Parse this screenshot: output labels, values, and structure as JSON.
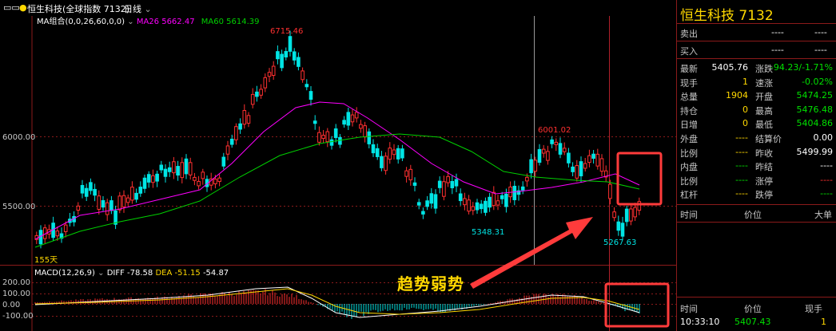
{
  "topbar": {
    "nav_glyph": "▭▭",
    "title": "恒生科技(全球指数 7132)",
    "period": "日线",
    "ma_label": "MA组合(0,0,26,60,0,0)",
    "ma26": "MA26 5662.47",
    "ma60": "MA60 5614.39"
  },
  "price_axis": [
    "6000.00",
    "5500.00"
  ],
  "macd": {
    "label": "MACD(12,26,9)",
    "diff": "DIFF -78.58",
    "dea": "DEA -51.15",
    "macd_val": "-54.87",
    "axis": [
      "200.00",
      "100.00",
      "0.00",
      "-100.00"
    ]
  },
  "annotations": {
    "high": "6715.46",
    "mid_high": "6001.02",
    "low1": "5348.31",
    "low2": "5267.63",
    "days": "155天"
  },
  "overlay_text": "趋势弱势",
  "panel": {
    "name": "恒生科技",
    "code": "7132",
    "sell_label": "卖出",
    "sell_v1": "----",
    "sell_v2": "----",
    "buy_label": "买入",
    "buy_v1": "----",
    "buy_v2": "----",
    "stats": [
      {
        "l": "最新",
        "v": "5405.76",
        "l2": "涨跌",
        "v2": "-94.23/-1.71%",
        "c": "#ffffff",
        "c2": "#00e000"
      },
      {
        "l": "现手",
        "v": "1",
        "l2": "速涨",
        "v2": "-0.02%",
        "c": "#ffd800",
        "c2": "#00e000"
      },
      {
        "l": "总量",
        "v": "1904",
        "l2": "开盘",
        "v2": "5474.25",
        "c": "#ffd800",
        "c2": "#00e000"
      },
      {
        "l": "持仓",
        "v": "0",
        "l2": "最高",
        "v2": "5476.48",
        "c": "#ffd800",
        "c2": "#00e000"
      },
      {
        "l": "日增",
        "v": "0",
        "l2": "最低",
        "v2": "5404.86",
        "c": "#ffd800",
        "c2": "#00e000"
      },
      {
        "l": "外盘",
        "v": "----",
        "l2": "结算价",
        "v2": "0.00",
        "c": "#ffd800",
        "c2": "#ffffff"
      },
      {
        "l": "比例",
        "v": "----",
        "l2": "昨收",
        "v2": "5499.99",
        "c": "#ffd800",
        "c2": "#ffffff"
      },
      {
        "l": "内盘",
        "v": "----",
        "l2": "昨结",
        "v2": "----",
        "c": "#00e000",
        "c2": "#ffffff"
      },
      {
        "l": "比例",
        "v": "----",
        "l2": "涨停",
        "v2": "----",
        "c": "#00e000",
        "c2": "#ff3030"
      },
      {
        "l": "杠杆",
        "v": "----",
        "l2": "跌停",
        "v2": "----",
        "c": "#ffd800",
        "c2": "#00e000"
      }
    ],
    "ticks_header": {
      "time": "时间",
      "price": "价位",
      "big": "大单"
    },
    "trades_header": {
      "time": "时间",
      "price": "价位",
      "vol": "现手"
    },
    "trade": {
      "time": "10:33:10",
      "price": "5407.43",
      "vol": "1"
    }
  },
  "colors": {
    "up": "#ff3030",
    "down": "#00e5e5",
    "ma26": "#ff00ff",
    "ma60": "#00d000",
    "diff": "#ffffff",
    "dea": "#ffd800",
    "frame": "#8b1a1a",
    "highlight": "#ff3b3b"
  },
  "chart_data": {
    "type": "candlestick",
    "ma26_last": 5662.47,
    "ma60_last": 5614.39,
    "macd_diff": -78.58,
    "macd_dea": -51.15,
    "macd_hist": -54.87,
    "labeled_points": {
      "high": 6715.46,
      "mid_high": 6001.02,
      "low1": 5348.31,
      "low2": 5267.63
    }
  }
}
